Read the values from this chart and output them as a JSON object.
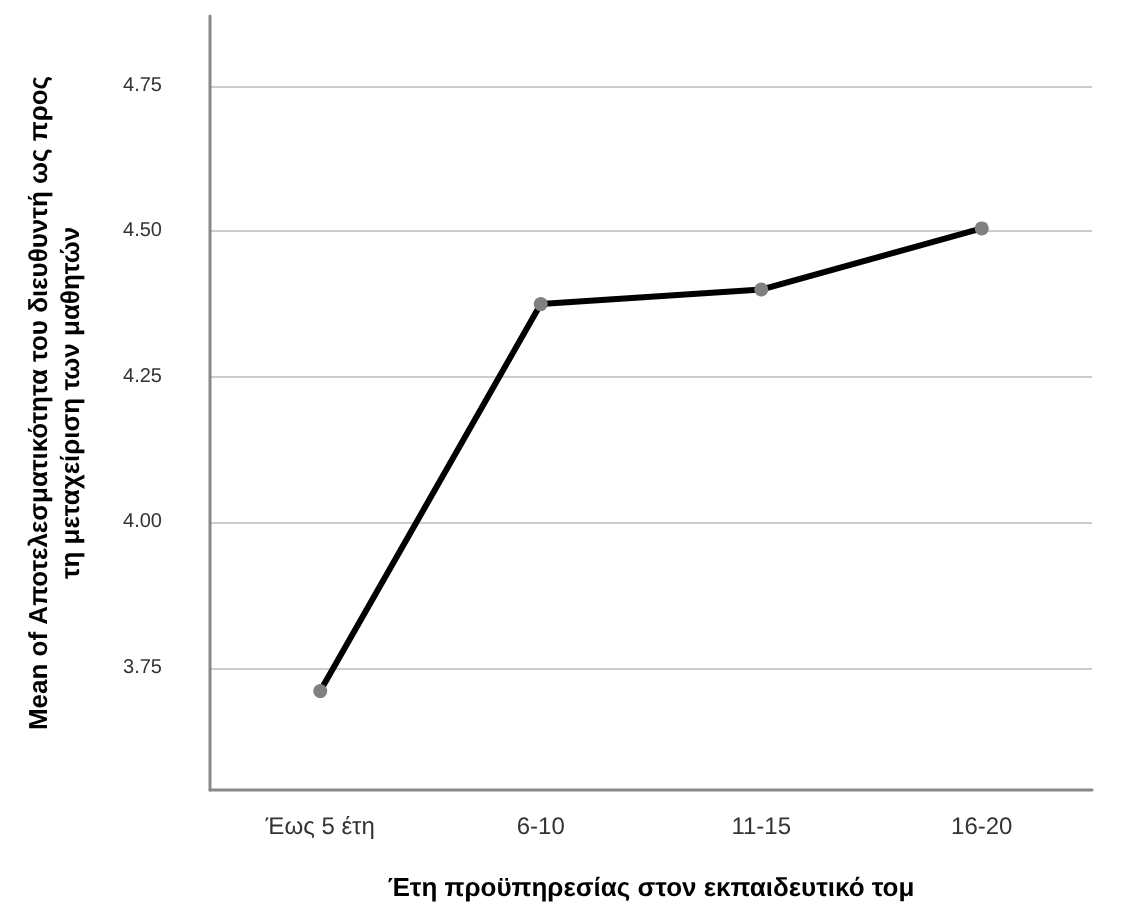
{
  "chart_data": {
    "type": "line",
    "xlabel": "Έτη προϋπηρεσίας στον εκπαιδευτικό τομ",
    "ylabel": "Mean of Αποτελεσματικότητα του διευθυντή ως προς\nτη μεταχείριση των μαθητών",
    "categories": [
      "Έως 5 έτη",
      "6-10",
      "11-15",
      "16-20"
    ],
    "series": [
      {
        "color": "#000000",
        "values": [
          3.71,
          4.375,
          4.4,
          4.505
        ]
      }
    ],
    "ylim": [
      3.54,
      4.87
    ],
    "yticks": [
      {
        "value": 3.75,
        "label": "3.75"
      },
      {
        "value": 4.0,
        "label": "4.00"
      },
      {
        "value": 4.25,
        "label": "4.25"
      },
      {
        "value": 4.5,
        "label": "4.50"
      },
      {
        "value": 4.75,
        "label": "4.75"
      }
    ],
    "grid": "y",
    "marker": "circle",
    "line_style": "solid"
  }
}
